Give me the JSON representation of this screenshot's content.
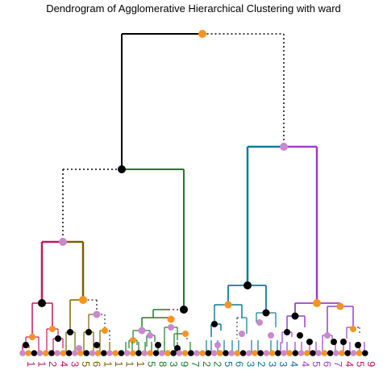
{
  "title": "Dendrogram of Agglomerative Hierarchical Clustering with ward",
  "colors": {
    "root": "#000000",
    "c1": "#c2185b",
    "c2": "#7a6000",
    "c3": "#1b7d2a",
    "c4": "#0e7a99",
    "c5": "#1b6bb0",
    "c6": "#9c3fc9",
    "dot_black": "#000000",
    "dot_orange": "#f5941e",
    "dot_pink": "#cc88cc"
  },
  "leaf_labels": [
    {
      "text": "1",
      "color": "#c2185b"
    },
    {
      "text": "1",
      "color": "#c2185b"
    },
    {
      "text": "2",
      "color": "#c2185b"
    },
    {
      "text": "4",
      "color": "#c2185b"
    },
    {
      "text": "3",
      "color": "#c2185b"
    },
    {
      "text": "5",
      "color": "#7a6000"
    },
    {
      "text": "6",
      "color": "#7a6000"
    },
    {
      "text": "1",
      "color": "#7a6000"
    },
    {
      "text": "1",
      "color": "#7a6000"
    },
    {
      "text": "1",
      "color": "#7a6000"
    },
    {
      "text": "1",
      "color": "#7a6000"
    },
    {
      "text": "5",
      "color": "#1b7d2a"
    },
    {
      "text": "8",
      "color": "#1b7d2a"
    },
    {
      "text": "3",
      "color": "#1b7d2a"
    },
    {
      "text": "9",
      "color": "#1b7d2a"
    },
    {
      "text": "7",
      "color": "#1b7d2a"
    },
    {
      "text": "2",
      "color": "#1b7d2a"
    },
    {
      "text": "2",
      "color": "#1b7d2a"
    },
    {
      "text": "5",
      "color": "#0e7a99"
    },
    {
      "text": "6",
      "color": "#0e7a99"
    },
    {
      "text": "3",
      "color": "#0e7a99"
    },
    {
      "text": "2",
      "color": "#0e7a99"
    },
    {
      "text": "3",
      "color": "#1b6bb0"
    },
    {
      "text": "3",
      "color": "#1b6bb0"
    },
    {
      "text": "4",
      "color": "#1b6bb0"
    },
    {
      "text": "4",
      "color": "#9c3fc9"
    },
    {
      "text": "5",
      "color": "#9c3fc9"
    },
    {
      "text": "6",
      "color": "#9c3fc9"
    },
    {
      "text": "7",
      "color": "#9c3fc9"
    },
    {
      "text": "4",
      "color": "#c2185b"
    },
    {
      "text": "5",
      "color": "#c2185b"
    },
    {
      "text": "9",
      "color": "#c2185b"
    }
  ]
}
